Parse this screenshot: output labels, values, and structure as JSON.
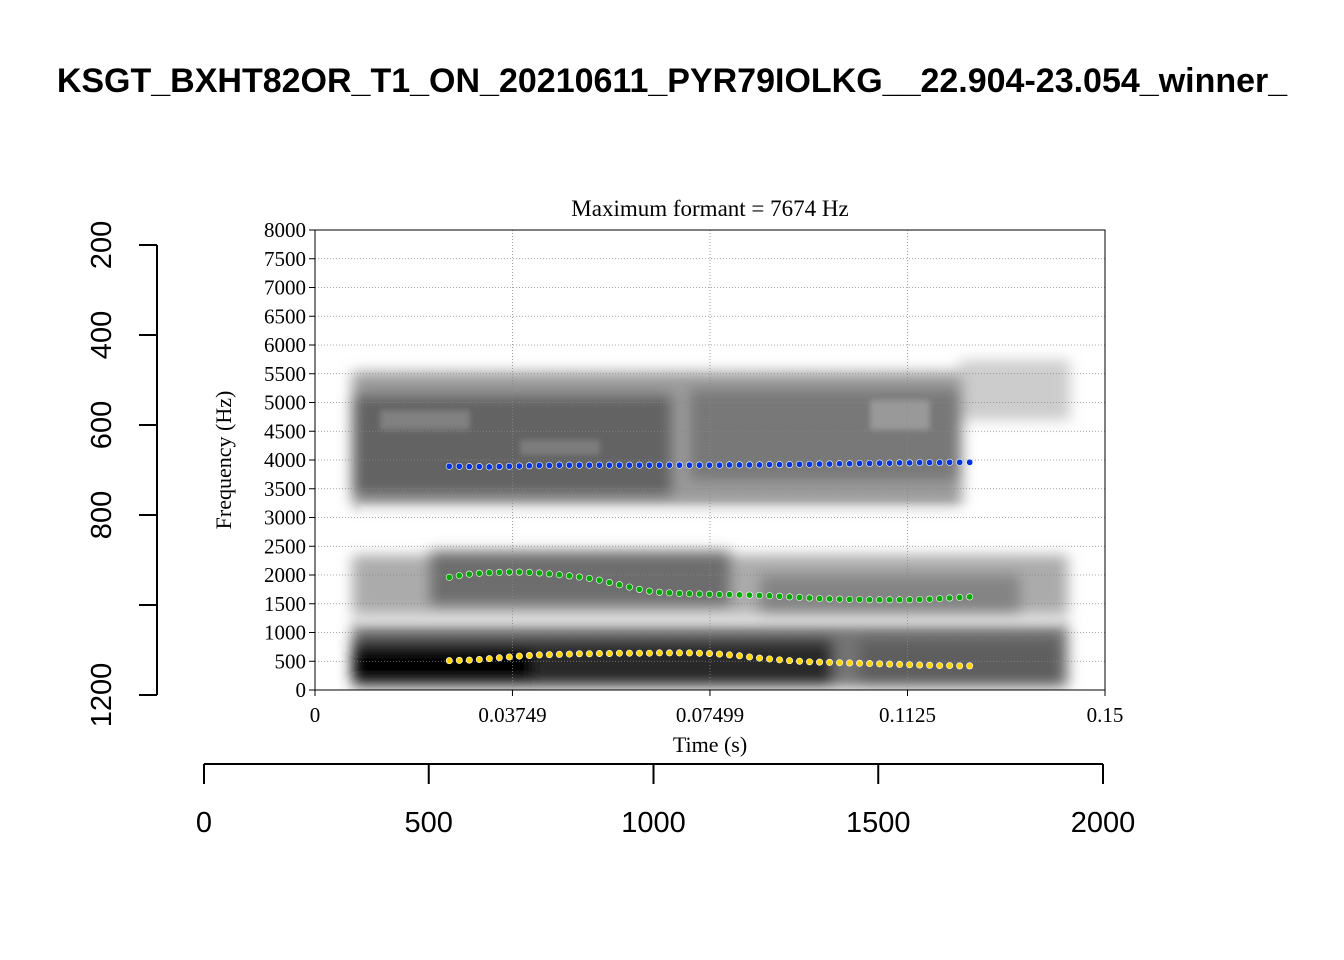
{
  "page_title": "KSGT_BXHT82OR_T1_ON_20210611_PYR79IOLKG__22.904-23.054_winner_",
  "outer_axes": {
    "left": {
      "ticks": [
        200,
        400,
        600,
        800,
        1200
      ],
      "tick_labels": [
        "200",
        "400",
        "600",
        "800",
        "1200"
      ],
      "range": [
        1200,
        200
      ]
    },
    "bottom": {
      "ticks": [
        0,
        500,
        1000,
        1500,
        2000
      ],
      "tick_labels": [
        "0",
        "500",
        "1000",
        "1500",
        "2000"
      ],
      "range": [
        0,
        2000
      ]
    }
  },
  "chart_data": {
    "type": "scatter",
    "title": "Maximum formant  =  7674 Hz",
    "xlabel": "Time (s)",
    "ylabel": "Frequency (Hz)",
    "xlim": [
      0,
      0.15
    ],
    "ylim": [
      0,
      8000
    ],
    "x_ticks": [
      0,
      0.03749,
      0.07499,
      0.1125,
      0.15
    ],
    "x_tick_labels": [
      "0",
      "0.03749",
      "0.07499",
      "0.1125",
      "0.15"
    ],
    "y_ticks": [
      0,
      500,
      1000,
      1500,
      2000,
      2500,
      3000,
      3500,
      4000,
      4500,
      5000,
      5500,
      6000,
      6500,
      7000,
      7500,
      8000
    ],
    "y_tick_labels": [
      "0",
      "500",
      "1000",
      "1500",
      "2000",
      "2500",
      "3000",
      "3500",
      "4000",
      "4500",
      "5000",
      "5500",
      "6000",
      "6500",
      "7000",
      "7500",
      "8000"
    ],
    "grid": true,
    "background": "grayscale spectrogram",
    "series": [
      {
        "color": "#0033dd",
        "x": [
          0.0255,
          0.0274,
          0.0293,
          0.0312,
          0.0331,
          0.035,
          0.0369,
          0.0388,
          0.0407,
          0.0426,
          0.0445,
          0.0464,
          0.0483,
          0.0502,
          0.0521,
          0.054,
          0.0559,
          0.0578,
          0.0597,
          0.0616,
          0.0635,
          0.0654,
          0.0673,
          0.0692,
          0.0711,
          0.073,
          0.0749,
          0.0768,
          0.0787,
          0.0806,
          0.0825,
          0.0844,
          0.0863,
          0.0882,
          0.0901,
          0.092,
          0.0939,
          0.0958,
          0.0977,
          0.0996,
          0.1015,
          0.1034,
          0.1053,
          0.1072,
          0.1091,
          0.111,
          0.1129,
          0.1148,
          0.1167,
          0.1186,
          0.1205,
          0.1224,
          0.1243
        ],
        "y": [
          3890,
          3890,
          3885,
          3885,
          3880,
          3885,
          3890,
          3895,
          3900,
          3905,
          3905,
          3910,
          3910,
          3910,
          3910,
          3910,
          3910,
          3910,
          3910,
          3910,
          3910,
          3910,
          3910,
          3910,
          3910,
          3910,
          3910,
          3910,
          3915,
          3915,
          3915,
          3915,
          3920,
          3920,
          3920,
          3925,
          3925,
          3930,
          3930,
          3935,
          3935,
          3940,
          3940,
          3945,
          3945,
          3950,
          3950,
          3955,
          3955,
          3955,
          3960,
          3960,
          3960
        ]
      },
      {
        "color": "#00aa00",
        "x": [
          0.0255,
          0.0274,
          0.0293,
          0.0312,
          0.0331,
          0.035,
          0.0369,
          0.0388,
          0.0407,
          0.0426,
          0.0445,
          0.0464,
          0.0483,
          0.0502,
          0.0521,
          0.054,
          0.0559,
          0.0578,
          0.0597,
          0.0616,
          0.0635,
          0.0654,
          0.0673,
          0.0692,
          0.0711,
          0.073,
          0.0749,
          0.0768,
          0.0787,
          0.0806,
          0.0825,
          0.0844,
          0.0863,
          0.0882,
          0.0901,
          0.092,
          0.0939,
          0.0958,
          0.0977,
          0.0996,
          0.1015,
          0.1034,
          0.1053,
          0.1072,
          0.1091,
          0.111,
          0.1129,
          0.1148,
          0.1167,
          0.1186,
          0.1205,
          0.1224,
          0.1243
        ],
        "y": [
          1960,
          1990,
          2015,
          2030,
          2040,
          2045,
          2050,
          2050,
          2045,
          2035,
          2020,
          2005,
          1985,
          1965,
          1940,
          1910,
          1870,
          1830,
          1790,
          1750,
          1720,
          1700,
          1690,
          1680,
          1675,
          1670,
          1665,
          1660,
          1660,
          1655,
          1650,
          1645,
          1640,
          1630,
          1620,
          1610,
          1600,
          1590,
          1585,
          1580,
          1575,
          1575,
          1570,
          1570,
          1570,
          1570,
          1570,
          1575,
          1580,
          1590,
          1600,
          1610,
          1620
        ]
      },
      {
        "color": "#ffd700",
        "x": [
          0.0255,
          0.0274,
          0.0293,
          0.0312,
          0.0331,
          0.035,
          0.0369,
          0.0388,
          0.0407,
          0.0426,
          0.0445,
          0.0464,
          0.0483,
          0.0502,
          0.0521,
          0.054,
          0.0559,
          0.0578,
          0.0597,
          0.0616,
          0.0635,
          0.0654,
          0.0673,
          0.0692,
          0.0711,
          0.073,
          0.0749,
          0.0768,
          0.0787,
          0.0806,
          0.0825,
          0.0844,
          0.0863,
          0.0882,
          0.0901,
          0.092,
          0.0939,
          0.0958,
          0.0977,
          0.0996,
          0.1015,
          0.1034,
          0.1053,
          0.1072,
          0.1091,
          0.111,
          0.1129,
          0.1148,
          0.1167,
          0.1186,
          0.1205,
          0.1224,
          0.1243
        ],
        "y": [
          510,
          515,
          520,
          530,
          545,
          560,
          575,
          590,
          600,
          610,
          615,
          620,
          625,
          630,
          630,
          635,
          635,
          640,
          640,
          640,
          640,
          645,
          645,
          645,
          645,
          640,
          635,
          625,
          610,
          595,
          575,
          555,
          540,
          525,
          510,
          500,
          490,
          485,
          480,
          475,
          470,
          465,
          460,
          455,
          450,
          445,
          440,
          435,
          430,
          425,
          425,
          420,
          420
        ]
      }
    ]
  }
}
